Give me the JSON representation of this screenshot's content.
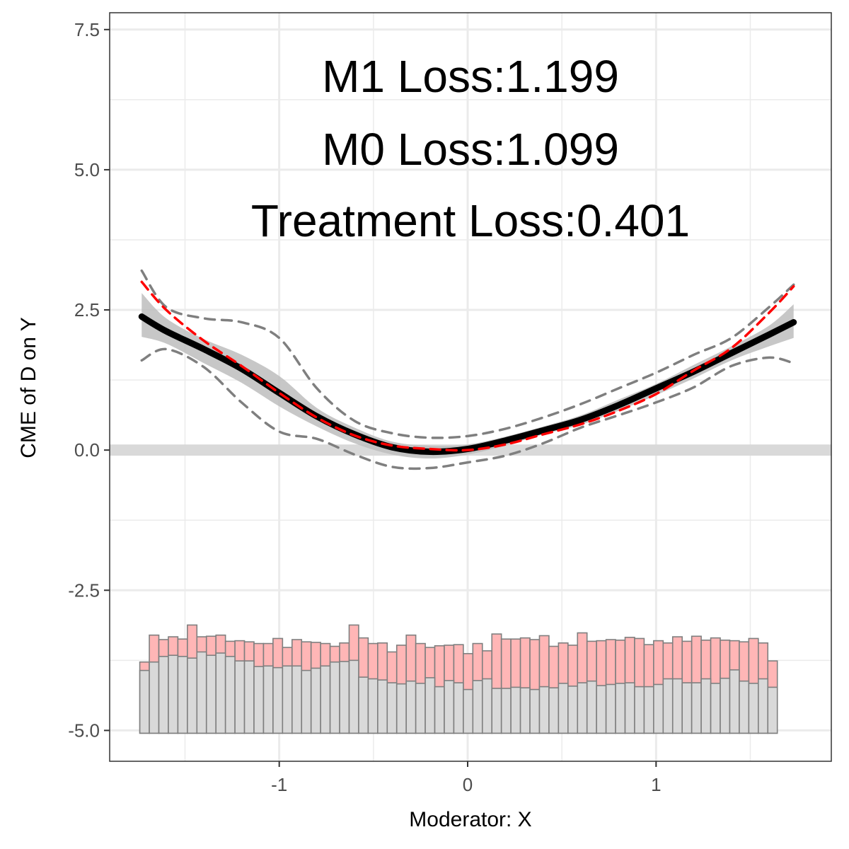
{
  "chart_data": {
    "type": "line",
    "title": "",
    "xlabel": "Moderator: X",
    "ylabel": "CME of D on Y",
    "xlim": [
      -1.9,
      1.93
    ],
    "ylim": [
      -5.55,
      7.8
    ],
    "x_ticks": [
      {
        "value": -1,
        "label": "-1"
      },
      {
        "value": 0,
        "label": "0"
      },
      {
        "value": 1,
        "label": "1"
      }
    ],
    "y_ticks": [
      {
        "value": 7.5,
        "label": "7.5"
      },
      {
        "value": 5.0,
        "label": "5.0"
      },
      {
        "value": 2.5,
        "label": "2.5"
      },
      {
        "value": 0.0,
        "label": "0.0"
      },
      {
        "value": -2.5,
        "label": "-2.5"
      },
      {
        "value": -5.0,
        "label": "-5.0"
      }
    ],
    "annotations": [
      "M1 Loss:1.199",
      "M0 Loss:1.099",
      "Treatment Loss:0.401"
    ],
    "colors": {
      "estimate": "#000000",
      "true_effect": "#ff0000",
      "ci_band": "#bdbdbd",
      "dashed_bounds": "#7f7f7f",
      "hist_treated": "#ffb6b6",
      "hist_control": "#d9d9d9",
      "hist_border": "#7f7f7f",
      "zero_band": "#d9d9d9",
      "grid": "#ebebeb"
    },
    "x": [
      -1.73,
      -1.6,
      -1.4,
      -1.2,
      -1.0,
      -0.8,
      -0.6,
      -0.4,
      -0.2,
      0.0,
      0.2,
      0.4,
      0.6,
      0.8,
      1.0,
      1.2,
      1.4,
      1.6,
      1.73
    ],
    "series": [
      {
        "name": "Estimated CME",
        "style": "solid-thick",
        "values": [
          2.38,
          2.12,
          1.8,
          1.45,
          1.02,
          0.6,
          0.28,
          0.05,
          -0.03,
          0.02,
          0.17,
          0.35,
          0.54,
          0.8,
          1.1,
          1.4,
          1.73,
          2.06,
          2.28
        ]
      },
      {
        "name": "True CME",
        "style": "dashed-red",
        "values": [
          3.0,
          2.5,
          1.95,
          1.5,
          1.02,
          0.58,
          0.26,
          0.08,
          0.02,
          0.0,
          0.1,
          0.28,
          0.46,
          0.7,
          1.0,
          1.42,
          1.82,
          2.45,
          2.92
        ]
      },
      {
        "name": "Upper bound",
        "style": "dashed-gray",
        "values": [
          3.2,
          2.55,
          2.35,
          2.28,
          2.0,
          1.1,
          0.52,
          0.3,
          0.22,
          0.25,
          0.38,
          0.58,
          0.82,
          1.1,
          1.38,
          1.7,
          2.0,
          2.55,
          2.95
        ]
      },
      {
        "name": "Lower bound",
        "style": "dashed-gray",
        "values": [
          1.6,
          1.8,
          1.48,
          0.85,
          0.33,
          0.2,
          -0.08,
          -0.3,
          -0.32,
          -0.22,
          -0.1,
          0.12,
          0.4,
          0.62,
          0.85,
          1.12,
          1.5,
          1.65,
          1.55
        ]
      }
    ],
    "ci_band": {
      "upper": [
        2.8,
        2.35,
        1.98,
        1.7,
        1.32,
        0.75,
        0.4,
        0.15,
        0.08,
        0.1,
        0.24,
        0.42,
        0.62,
        0.9,
        1.18,
        1.52,
        1.85,
        2.22,
        2.6
      ],
      "lower": [
        2.02,
        1.9,
        1.55,
        1.2,
        0.78,
        0.42,
        0.12,
        -0.08,
        -0.15,
        -0.08,
        0.08,
        0.28,
        0.45,
        0.7,
        0.98,
        1.28,
        1.6,
        1.85,
        2.0
      ]
    },
    "histogram": {
      "x_start": -1.74,
      "bin_width": 0.0505,
      "base": -5.05,
      "treated_tops": [
        -3.78,
        -3.3,
        -3.38,
        -3.33,
        -3.37,
        -3.12,
        -3.33,
        -3.32,
        -3.3,
        -3.41,
        -3.4,
        -3.42,
        -3.45,
        -3.45,
        -3.36,
        -3.52,
        -3.38,
        -3.42,
        -3.43,
        -3.45,
        -3.5,
        -3.44,
        -3.12,
        -3.35,
        -3.45,
        -3.44,
        -3.6,
        -3.48,
        -3.3,
        -3.45,
        -3.52,
        -3.49,
        -3.48,
        -3.47,
        -3.63,
        -3.45,
        -3.58,
        -3.28,
        -3.37,
        -3.37,
        -3.35,
        -3.38,
        -3.31,
        -3.5,
        -3.44,
        -3.48,
        -3.26,
        -3.41,
        -3.4,
        -3.38,
        -3.39,
        -3.34,
        -3.36,
        -3.47,
        -3.4,
        -3.44,
        -3.33,
        -3.41,
        -3.32,
        -3.39,
        -3.35,
        -3.39,
        -3.4,
        -3.42,
        -3.36,
        -3.44,
        -3.76
      ],
      "control_tops": [
        -3.93,
        -3.78,
        -3.68,
        -3.66,
        -3.68,
        -3.71,
        -3.6,
        -3.66,
        -3.62,
        -3.68,
        -3.76,
        -3.76,
        -3.86,
        -3.85,
        -3.88,
        -3.85,
        -3.85,
        -3.93,
        -3.89,
        -3.85,
        -3.78,
        -3.77,
        -3.75,
        -4.05,
        -4.08,
        -4.1,
        -4.15,
        -4.17,
        -4.12,
        -4.16,
        -4.06,
        -4.22,
        -4.11,
        -4.15,
        -4.27,
        -4.11,
        -4.08,
        -4.25,
        -4.25,
        -4.23,
        -4.24,
        -4.27,
        -4.22,
        -4.24,
        -4.16,
        -4.21,
        -4.15,
        -4.12,
        -4.2,
        -4.18,
        -4.16,
        -4.15,
        -4.22,
        -4.22,
        -4.18,
        -4.08,
        -4.08,
        -4.15,
        -4.15,
        -4.08,
        -4.16,
        -4.07,
        -3.92,
        -4.12,
        -4.16,
        -4.08,
        -4.23
      ]
    }
  }
}
